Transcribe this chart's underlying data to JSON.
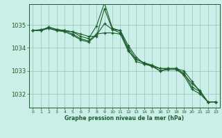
{
  "xlabel": "Graphe pression niveau de la mer (hPa)",
  "bg_color": "#cceee8",
  "grid_color": "#99ccbb",
  "line_color": "#1a5c2a",
  "x_ticks": [
    0,
    1,
    2,
    3,
    4,
    5,
    6,
    7,
    8,
    9,
    10,
    11,
    12,
    13,
    14,
    15,
    16,
    17,
    18,
    19,
    20,
    21,
    22,
    23
  ],
  "ylim": [
    1031.4,
    1035.9
  ],
  "yticks": [
    1032,
    1033,
    1034,
    1035
  ],
  "figsize": [
    3.2,
    2.0
  ],
  "dpi": 100,
  "series": [
    [
      1034.75,
      1034.75,
      1034.85,
      1034.75,
      1034.75,
      1034.7,
      1034.6,
      1034.5,
      1034.5,
      1035.7,
      1034.8,
      1034.75,
      1033.9,
      1033.4,
      1033.3,
      1033.2,
      1033.0,
      1033.1,
      1033.1,
      1032.9,
      1032.3,
      1032.1,
      1031.65,
      1031.65
    ],
    [
      1034.75,
      1034.75,
      1034.9,
      1034.8,
      1034.75,
      1034.7,
      1034.5,
      1034.4,
      1034.95,
      1035.95,
      1034.85,
      1034.75,
      1034.1,
      1033.6,
      1033.3,
      1033.2,
      1033.1,
      1033.1,
      1033.1,
      1032.8,
      1032.2,
      1032.0,
      1031.65,
      1031.65
    ],
    [
      1034.75,
      1034.75,
      1034.9,
      1034.8,
      1034.75,
      1034.6,
      1034.4,
      1034.3,
      1034.6,
      1034.65,
      1034.65,
      1034.6,
      1033.85,
      1033.5,
      1033.35,
      1033.25,
      1033.1,
      1033.1,
      1033.1,
      1033.0,
      1032.55,
      1032.1,
      1031.65,
      1031.65
    ],
    [
      1034.75,
      1034.8,
      1034.85,
      1034.75,
      1034.7,
      1034.55,
      1034.35,
      1034.25,
      1034.55,
      1035.05,
      1034.8,
      1034.65,
      1034.0,
      1033.5,
      1033.35,
      1033.2,
      1033.0,
      1033.05,
      1033.05,
      1032.85,
      1032.45,
      1032.15,
      1031.65,
      1031.65
    ]
  ]
}
